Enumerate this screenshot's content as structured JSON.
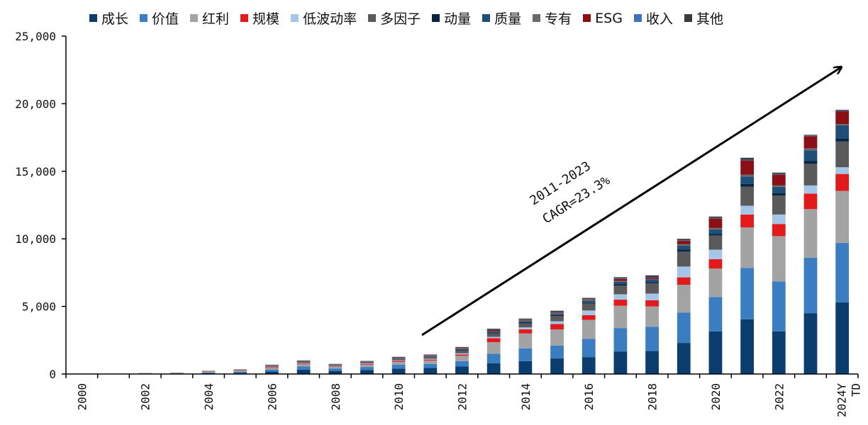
{
  "chart_data": {
    "type": "bar",
    "stacked": true,
    "title": "",
    "xlabel": "",
    "ylabel": "",
    "ylim": [
      0,
      25000
    ],
    "yticks": [
      0,
      5000,
      10000,
      15000,
      20000,
      25000
    ],
    "ytick_labels": [
      "0",
      "5,000",
      "10,000",
      "15,000",
      "20,000",
      "25,000"
    ],
    "grid": false,
    "legend_position": "top",
    "categories": [
      "2000",
      "2001",
      "2002",
      "2003",
      "2004",
      "2005",
      "2006",
      "2007",
      "2008",
      "2009",
      "2010",
      "2011",
      "2012",
      "2013",
      "2014",
      "2015",
      "2016",
      "2017",
      "2018",
      "2019",
      "2020",
      "2021",
      "2022",
      "2023",
      "2024YTD"
    ],
    "xtick_labels": [
      "2000",
      "",
      "2002",
      "",
      "2004",
      "",
      "2006",
      "",
      "2008",
      "",
      "2010",
      "",
      "2012",
      "",
      "2014",
      "",
      "2016",
      "",
      "2018",
      "",
      "2020",
      "",
      "2022",
      "",
      "2024YTD"
    ],
    "series": [
      {
        "name": "成长",
        "color": "#0b3d6e",
        "values": [
          0,
          0,
          20,
          30,
          60,
          90,
          180,
          320,
          230,
          300,
          400,
          450,
          550,
          800,
          950,
          1150,
          1250,
          1650,
          1700,
          2300,
          3150,
          4050,
          3150,
          4500,
          5300
        ]
      },
      {
        "name": "价值",
        "color": "#3a7dc1",
        "values": [
          0,
          0,
          10,
          20,
          50,
          70,
          150,
          230,
          180,
          220,
          280,
          300,
          400,
          700,
          950,
          950,
          1350,
          1750,
          1800,
          2250,
          2550,
          3800,
          3700,
          4100,
          4400
        ]
      },
      {
        "name": "红利",
        "color": "#a3a3a3",
        "values": [
          0,
          0,
          10,
          10,
          40,
          60,
          120,
          180,
          120,
          170,
          220,
          250,
          400,
          850,
          1100,
          1200,
          1400,
          1650,
          1500,
          2050,
          2100,
          3000,
          3350,
          3600,
          3850
        ]
      },
      {
        "name": "规模",
        "color": "#e31a1c",
        "values": [
          0,
          0,
          5,
          5,
          20,
          30,
          60,
          50,
          40,
          60,
          70,
          70,
          100,
          300,
          300,
          400,
          350,
          450,
          450,
          550,
          700,
          950,
          900,
          1150,
          1250
        ]
      },
      {
        "name": "低波动率",
        "color": "#a6c6e8",
        "values": [
          0,
          0,
          5,
          5,
          10,
          15,
          30,
          40,
          30,
          40,
          50,
          60,
          80,
          100,
          150,
          200,
          350,
          400,
          500,
          800,
          700,
          650,
          700,
          600,
          500
        ]
      },
      {
        "name": "多因子",
        "color": "#5a5a5a",
        "values": [
          0,
          0,
          5,
          10,
          20,
          30,
          60,
          80,
          60,
          70,
          100,
          120,
          200,
          250,
          300,
          400,
          500,
          650,
          750,
          1100,
          1050,
          1400,
          1400,
          1600,
          1900
        ]
      },
      {
        "name": "动量",
        "color": "#0a2440",
        "values": [
          0,
          0,
          2,
          3,
          5,
          5,
          10,
          10,
          8,
          10,
          15,
          20,
          30,
          40,
          50,
          50,
          60,
          80,
          100,
          150,
          100,
          200,
          200,
          200,
          200
        ]
      },
      {
        "name": "质量",
        "color": "#1f4e79",
        "values": [
          0,
          0,
          3,
          5,
          10,
          15,
          30,
          40,
          30,
          40,
          60,
          60,
          80,
          100,
          100,
          100,
          150,
          200,
          200,
          300,
          350,
          550,
          450,
          800,
          1000
        ]
      },
      {
        "name": "专有",
        "color": "#6a6a6a",
        "values": [
          0,
          0,
          2,
          2,
          5,
          5,
          10,
          10,
          10,
          10,
          10,
          20,
          30,
          30,
          50,
          50,
          50,
          50,
          50,
          100,
          100,
          150,
          100,
          150,
          100
        ]
      },
      {
        "name": "ESG",
        "color": "#8b1016",
        "values": [
          0,
          0,
          3,
          5,
          10,
          10,
          20,
          30,
          20,
          20,
          30,
          50,
          60,
          80,
          50,
          50,
          50,
          150,
          100,
          250,
          700,
          1050,
          800,
          900,
          950
        ]
      },
      {
        "name": "收入",
        "color": "#3e74b6",
        "values": [
          0,
          0,
          2,
          2,
          5,
          5,
          5,
          10,
          10,
          10,
          10,
          10,
          20,
          20,
          20,
          30,
          30,
          30,
          30,
          40,
          40,
          50,
          50,
          50,
          50
        ]
      },
      {
        "name": "其他",
        "color": "#3b3b3b",
        "values": [
          0,
          0,
          3,
          3,
          5,
          10,
          15,
          10,
          12,
          20,
          25,
          30,
          50,
          80,
          80,
          100,
          90,
          100,
          120,
          110,
          110,
          150,
          100,
          50,
          50
        ]
      }
    ],
    "annotation": {
      "line1": "2011-2023",
      "line2": "CAGR=23.3%"
    }
  }
}
